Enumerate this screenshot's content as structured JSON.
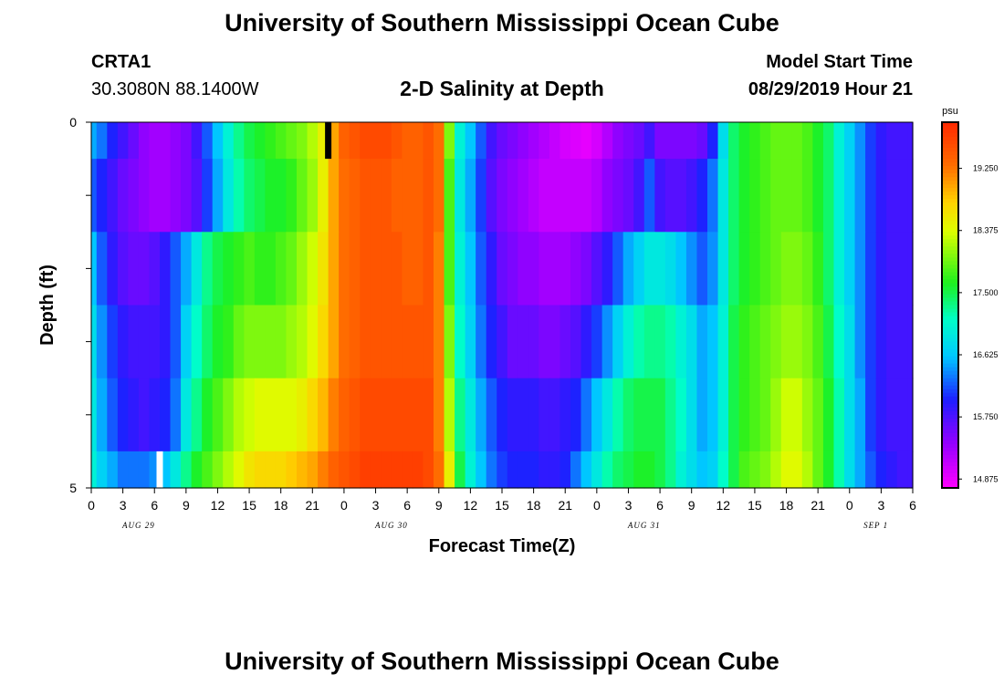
{
  "header": {
    "title": "University of Southern Mississippi Ocean Cube",
    "station": "CRTA1",
    "coords": "30.3080N 88.1400W",
    "plot_title": "2-D Salinity at Depth",
    "model_label": "Model Start Time",
    "model_time": "08/29/2019 Hour 21"
  },
  "footer": {
    "title": "University of Southern Mississippi Ocean Cube"
  },
  "colorbar": {
    "unit": "psu",
    "ticks": [
      "19.250",
      "18.375",
      "17.500",
      "16.625",
      "15.750",
      "14.875"
    ]
  },
  "chart_data": {
    "type": "heatmap",
    "xlabel": "Forecast Time(Z)",
    "ylabel": "Depth (ft)",
    "ylim": [
      0,
      5
    ],
    "y_tick_labels": [
      "0",
      "5"
    ],
    "x_hours": [
      0,
      1,
      2,
      3,
      4,
      5,
      6,
      7,
      8,
      9,
      10,
      11,
      12,
      13,
      14,
      15,
      16,
      17,
      18,
      19,
      20,
      21,
      22,
      23,
      24,
      25,
      26,
      27,
      28,
      29,
      30,
      31,
      32,
      33,
      34,
      35,
      36,
      37,
      38,
      39,
      40,
      41,
      42,
      43,
      44,
      45,
      46,
      47,
      48,
      49,
      50,
      51,
      52,
      53,
      54,
      55,
      56,
      57,
      58,
      59,
      60,
      61,
      62,
      63,
      64,
      65,
      66,
      67,
      68,
      69,
      70,
      71,
      72,
      73,
      74,
      75,
      76,
      77,
      78
    ],
    "x_tick_labels": [
      "0",
      "3",
      "6",
      "9",
      "12",
      "15",
      "18",
      "21",
      "0",
      "3",
      "6",
      "9",
      "12",
      "15",
      "18",
      "21",
      "0",
      "3",
      "6",
      "9",
      "12",
      "15",
      "18",
      "21",
      "0",
      "3",
      "6"
    ],
    "date_labels": [
      "AUG 29",
      "AUG 30",
      "AUG 31",
      "SEP 1"
    ],
    "depth_layers": [
      "0-0.5",
      "0.5-1.5",
      "1.5-2.5",
      "2.5-3.5",
      "3.5-4.5",
      "4.5-5"
    ],
    "colorscale_range": [
      14.75,
      19.9
    ],
    "salinity_psu": [
      [
        16.5,
        16.3,
        16.0,
        15.8,
        15.6,
        15.4,
        15.3,
        15.3,
        15.4,
        15.5,
        15.8,
        16.2,
        16.6,
        17.0,
        17.3,
        17.5,
        17.6,
        17.7,
        17.8,
        17.9,
        18.0,
        18.2,
        18.5,
        19.0,
        19.4,
        19.5,
        19.6,
        19.6,
        19.6,
        19.5,
        19.4,
        19.4,
        19.5,
        19.3,
        18.0,
        17.0,
        16.6,
        16.2,
        15.8,
        15.6,
        15.5,
        15.4,
        15.3,
        15.2,
        15.1,
        15.0,
        14.95,
        14.9,
        15.0,
        15.2,
        15.4,
        15.5,
        15.6,
        15.8,
        15.5,
        15.5,
        15.5,
        15.5,
        15.6,
        16.0,
        16.8,
        17.4,
        17.6,
        17.7,
        17.8,
        17.9,
        17.9,
        17.9,
        17.8,
        17.6,
        17.4,
        17.0,
        16.7,
        16.4,
        16.1,
        15.9,
        15.8,
        15.8,
        15.8
      ],
      [
        16.2,
        16.0,
        15.8,
        15.6,
        15.5,
        15.4,
        15.3,
        15.3,
        15.4,
        15.5,
        15.7,
        16.1,
        16.5,
        16.9,
        17.2,
        17.4,
        17.5,
        17.6,
        17.6,
        17.7,
        17.9,
        18.1,
        18.5,
        19.0,
        19.3,
        19.4,
        19.5,
        19.5,
        19.5,
        19.4,
        19.4,
        19.4,
        19.5,
        19.3,
        17.8,
        16.9,
        16.5,
        16.1,
        15.7,
        15.5,
        15.4,
        15.3,
        15.2,
        15.1,
        15.1,
        15.1,
        15.1,
        15.1,
        15.2,
        15.4,
        15.5,
        15.6,
        15.8,
        16.2,
        15.8,
        15.7,
        15.7,
        15.8,
        16.0,
        16.3,
        16.9,
        17.4,
        17.6,
        17.7,
        17.8,
        17.9,
        17.9,
        17.9,
        17.8,
        17.6,
        17.4,
        17.0,
        16.7,
        16.4,
        16.1,
        15.9,
        15.8,
        15.8,
        15.8
      ],
      [
        16.6,
        16.2,
        15.9,
        15.7,
        15.6,
        15.6,
        15.7,
        15.9,
        16.2,
        16.5,
        16.9,
        17.3,
        17.5,
        17.6,
        17.7,
        17.8,
        17.7,
        17.7,
        17.8,
        17.9,
        18.1,
        18.3,
        18.6,
        19.0,
        19.3,
        19.4,
        19.5,
        19.5,
        19.5,
        19.5,
        19.4,
        19.4,
        19.5,
        19.2,
        17.8,
        17.0,
        16.6,
        16.2,
        15.9,
        15.6,
        15.5,
        15.4,
        15.4,
        15.3,
        15.3,
        15.3,
        15.4,
        15.5,
        15.7,
        15.9,
        16.2,
        16.5,
        16.7,
        16.9,
        16.9,
        16.8,
        16.6,
        16.4,
        16.2,
        16.4,
        16.9,
        17.4,
        17.6,
        17.7,
        17.8,
        17.9,
        18.0,
        18.0,
        17.9,
        17.7,
        17.4,
        17.0,
        16.7,
        16.4,
        16.1,
        15.9,
        15.8,
        15.8,
        15.8
      ],
      [
        16.8,
        16.4,
        16.1,
        15.9,
        15.8,
        15.8,
        15.8,
        15.9,
        16.2,
        16.7,
        17.1,
        17.4,
        17.6,
        17.7,
        17.9,
        18.0,
        18.0,
        18.0,
        18.0,
        18.1,
        18.2,
        18.4,
        18.7,
        19.0,
        19.3,
        19.4,
        19.5,
        19.5,
        19.5,
        19.5,
        19.5,
        19.5,
        19.5,
        19.2,
        18.0,
        17.1,
        16.7,
        16.3,
        16.0,
        15.8,
        15.6,
        15.6,
        15.6,
        15.5,
        15.5,
        15.6,
        15.7,
        15.9,
        16.1,
        16.4,
        16.7,
        17.0,
        17.2,
        17.3,
        17.3,
        17.2,
        17.0,
        16.8,
        16.5,
        16.6,
        17.0,
        17.5,
        17.7,
        17.8,
        17.9,
        18.0,
        18.1,
        18.1,
        18.0,
        17.8,
        17.5,
        17.1,
        16.8,
        16.4,
        16.1,
        15.9,
        15.8,
        15.8,
        15.8
      ],
      [
        16.9,
        16.5,
        16.2,
        16.0,
        15.9,
        15.8,
        15.9,
        16.0,
        16.3,
        16.9,
        17.3,
        17.6,
        17.8,
        18.0,
        18.2,
        18.3,
        18.4,
        18.4,
        18.4,
        18.4,
        18.5,
        18.7,
        18.9,
        19.2,
        19.4,
        19.5,
        19.6,
        19.6,
        19.6,
        19.6,
        19.6,
        19.6,
        19.6,
        19.2,
        18.2,
        17.3,
        16.9,
        16.5,
        16.2,
        16.0,
        15.9,
        15.9,
        15.9,
        15.8,
        15.8,
        15.9,
        16.0,
        16.3,
        16.6,
        16.9,
        17.2,
        17.4,
        17.5,
        17.5,
        17.5,
        17.3,
        17.1,
        16.8,
        16.5,
        16.6,
        17.0,
        17.5,
        17.7,
        17.8,
        17.9,
        18.1,
        18.3,
        18.3,
        18.1,
        17.9,
        17.6,
        17.2,
        16.8,
        16.5,
        16.1,
        15.9,
        15.8,
        15.8,
        15.8
      ],
      [
        17.0,
        16.7,
        16.5,
        16.3,
        16.3,
        16.3,
        16.4,
        16.6,
        16.9,
        17.3,
        17.6,
        17.8,
        18.0,
        18.2,
        18.4,
        18.6,
        18.7,
        18.7,
        18.7,
        18.8,
        18.9,
        19.0,
        19.2,
        19.4,
        19.5,
        19.6,
        19.7,
        19.7,
        19.7,
        19.7,
        19.7,
        19.7,
        19.6,
        19.3,
        18.5,
        17.5,
        17.0,
        16.6,
        16.3,
        16.1,
        16.0,
        16.0,
        16.0,
        15.9,
        15.9,
        16.0,
        16.3,
        16.6,
        16.9,
        17.2,
        17.4,
        17.5,
        17.6,
        17.6,
        17.5,
        17.3,
        17.0,
        16.8,
        16.6,
        16.7,
        17.1,
        17.5,
        17.8,
        17.9,
        18.0,
        18.2,
        18.4,
        18.4,
        18.2,
        17.9,
        17.6,
        17.2,
        16.8,
        16.5,
        16.2,
        16.0,
        15.9,
        15.8,
        15.8
      ]
    ],
    "markers": [
      {
        "hour": 22.5,
        "depth_from": 0,
        "depth_to": 0.5,
        "color": "#000000"
      },
      {
        "hour": 6.5,
        "depth_from": 4.5,
        "depth_to": 5,
        "color": "#ffffff"
      }
    ]
  }
}
